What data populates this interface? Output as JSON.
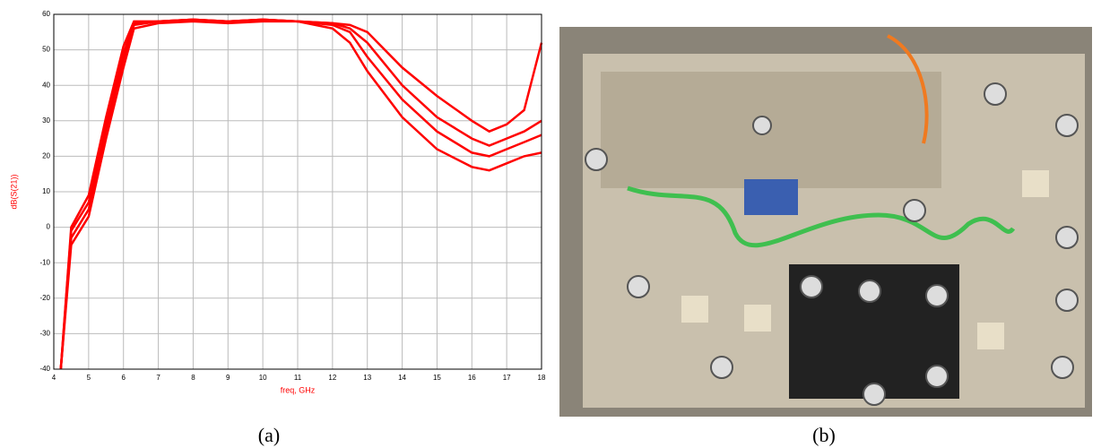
{
  "chart_data": {
    "type": "line",
    "x_label": "freq, GHz",
    "y_label": "dB(S(21))",
    "caption": "(a)",
    "x": [
      4.2,
      4.5,
      5,
      5.5,
      6,
      6.3,
      7,
      8,
      9,
      10,
      11,
      12,
      12.5,
      13,
      14,
      15,
      16,
      16.5,
      17,
      17.5,
      18
    ],
    "series": [
      {
        "color": "#ff0000",
        "values": [
          -40,
          0,
          9,
          31,
          51,
          58,
          58,
          58.5,
          58,
          58.5,
          58,
          57.5,
          57,
          55,
          45,
          37,
          30,
          27,
          29,
          33,
          52
        ]
      },
      {
        "color": "#ff0000",
        "values": [
          -40,
          -1,
          7,
          29,
          49,
          57.5,
          58,
          58.5,
          58,
          58.5,
          58,
          57.5,
          56,
          52,
          40,
          31,
          25,
          23,
          25,
          27,
          30
        ]
      },
      {
        "color": "#ff0000",
        "values": [
          -40,
          -3,
          5,
          27,
          47,
          57,
          58,
          58.5,
          58,
          58.5,
          58,
          57,
          55,
          48,
          36,
          27,
          21,
          20,
          22,
          24,
          26
        ]
      },
      {
        "color": "#ff0000",
        "values": [
          -40,
          -5,
          3,
          25,
          45,
          56,
          57.5,
          58,
          57.5,
          58,
          58,
          56,
          52,
          44,
          31,
          22,
          17,
          16,
          18,
          20,
          21
        ]
      }
    ],
    "xlim": [
      4,
      18
    ],
    "xticks": [
      4,
      5,
      6,
      7,
      8,
      9,
      10,
      11,
      12,
      13,
      14,
      15,
      16,
      17,
      18
    ],
    "ylim": [
      -40,
      60
    ],
    "yticks": [
      -40,
      -30,
      -20,
      -10,
      0,
      10,
      20,
      30,
      40,
      50,
      60
    ],
    "grid": true
  },
  "photo": {
    "caption": "(b)"
  }
}
